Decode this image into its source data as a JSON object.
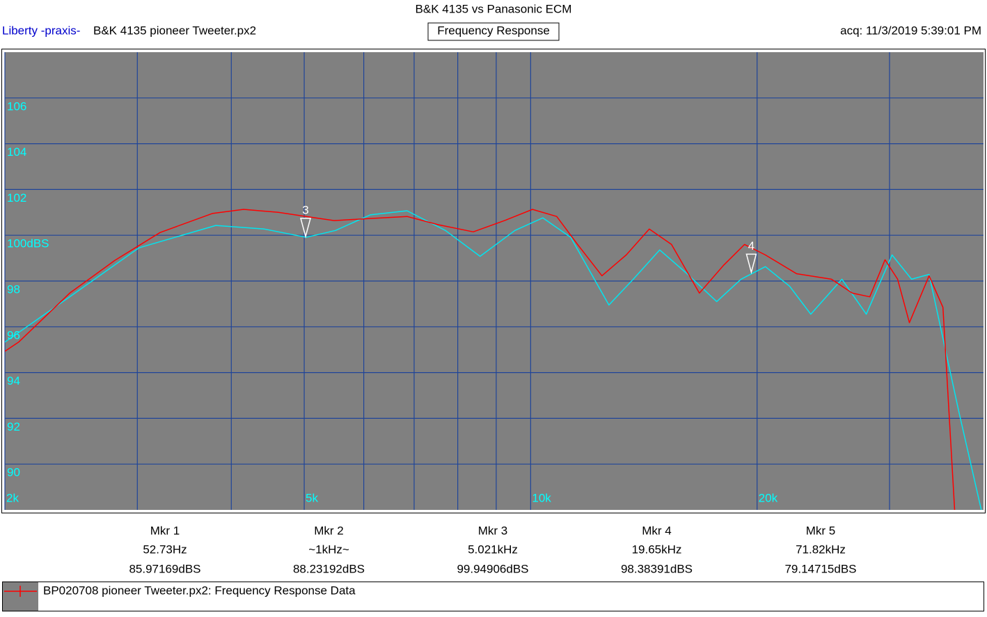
{
  "chart_data": {
    "type": "line",
    "title": "B&K 4135 vs Panasonic ECM",
    "brand": "Liberty -praxis-",
    "file": "B&K 4135 pioneer Tweeter.px2",
    "mode": "Frequency Response",
    "acquired": "acq: 11/3/2019 5:39:01 PM",
    "log_x": true,
    "grid": true,
    "grid_color": "#1f4499",
    "background": "#808080",
    "xlim": [
      2000,
      40000
    ],
    "xticks": [
      {
        "value": 2000,
        "label": "2k"
      },
      {
        "value": 5000,
        "label": "5k"
      },
      {
        "value": 10000,
        "label": "10k"
      },
      {
        "value": 20000,
        "label": "20k"
      }
    ],
    "xgrid": [
      3000,
      4000,
      6000,
      7000,
      8000,
      9000,
      30000
    ],
    "ylim": [
      88,
      108
    ],
    "yticks": [
      90,
      92,
      94,
      96,
      98,
      {
        "value": 100,
        "label": "100dBS"
      },
      102,
      104,
      106
    ],
    "series": [
      {
        "name": "BP020708  pioneer Tweeter.px2:  Frequency Response Data",
        "color": "#ff0000",
        "x": [
          2000,
          2086,
          2439,
          2800,
          3216,
          3774,
          4154,
          4620,
          5031,
          5480,
          6094,
          6850,
          7543,
          8389,
          9232,
          10054,
          10831,
          11545,
          12440,
          13400,
          14378,
          15390,
          16762,
          18054,
          19250,
          20515,
          22575,
          25112,
          26770,
          28240,
          29590,
          30750,
          31880,
          33860,
          35330,
          36630
        ],
        "values": [
          94.93,
          95.33,
          97.47,
          98.9,
          100.12,
          100.95,
          101.13,
          101.0,
          100.82,
          100.64,
          100.73,
          100.82,
          100.46,
          100.15,
          100.64,
          101.13,
          100.82,
          99.6,
          98.23,
          99.14,
          100.27,
          99.6,
          97.47,
          98.69,
          99.6,
          99.14,
          98.32,
          98.08,
          97.47,
          97.31,
          98.93,
          98.08,
          96.18,
          98.23,
          96.85,
          87.9
        ]
      },
      {
        "color": "#00e5f0",
        "x": [
          2000,
          2439,
          3015,
          3814,
          4427,
          5031,
          5503,
          6120,
          6850,
          7703,
          8566,
          9530,
          10380,
          11307,
          12707,
          13690,
          14846,
          16063,
          17677,
          19040,
          20515,
          22100,
          23570,
          25930,
          27940,
          30230,
          32090,
          33860,
          37100,
          39730
        ],
        "values": [
          95.33,
          97.31,
          99.45,
          100.43,
          100.27,
          99.91,
          100.21,
          100.89,
          101.07,
          100.21,
          99.08,
          100.21,
          100.76,
          99.91,
          96.95,
          98.08,
          99.36,
          98.38,
          97.1,
          98.08,
          98.63,
          97.77,
          96.55,
          98.08,
          96.55,
          99.14,
          98.08,
          98.29,
          92.27,
          88.0
        ]
      }
    ],
    "plot_markers": [
      {
        "label": "3",
        "x": 5021,
        "y": 99.94906
      },
      {
        "label": "4",
        "x": 19650,
        "y": 98.38391
      }
    ],
    "markers": [
      {
        "label": "Mkr 1",
        "freq": "52.73Hz",
        "level": "85.97169dBS"
      },
      {
        "label": "Mkr 2",
        "freq": "~1kHz~",
        "level": "88.23192dBS"
      },
      {
        "label": "Mkr 3",
        "freq": "5.021kHz",
        "level": "99.94906dBS"
      },
      {
        "label": "Mkr 4",
        "freq": "19.65kHz",
        "level": "98.38391dBS"
      },
      {
        "label": "Mkr 5",
        "freq": "71.82kHz",
        "level": "79.14715dBS"
      }
    ]
  }
}
